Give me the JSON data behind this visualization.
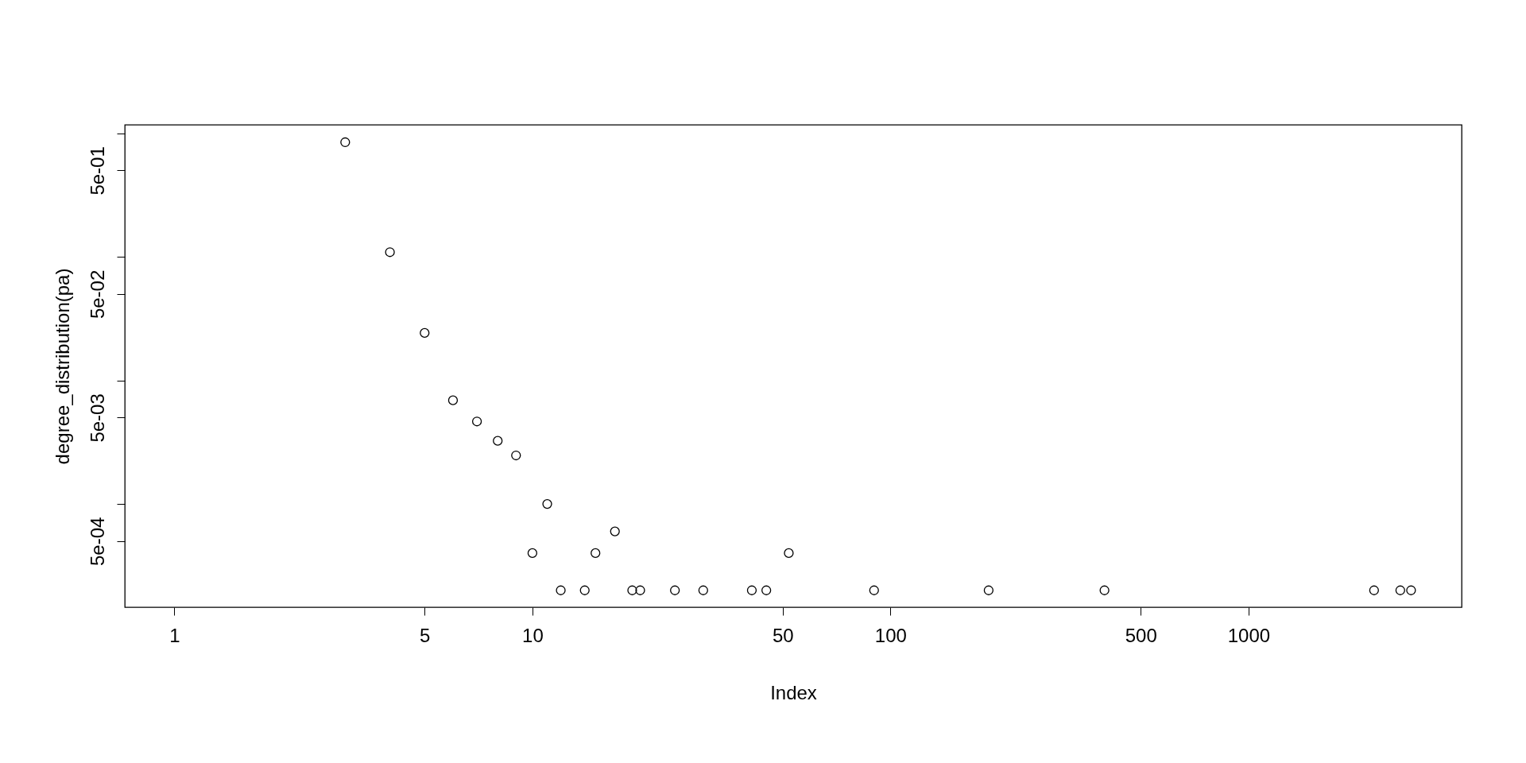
{
  "chart_data": {
    "type": "scatter",
    "xlabel": "Index",
    "ylabel": "degree_distribution(pa)",
    "log": "xy",
    "grid": false,
    "marker": "circle",
    "legend": false,
    "x": [
      3,
      4,
      5,
      6,
      7,
      8,
      9,
      10,
      11,
      12,
      14,
      15,
      17,
      19,
      20,
      25,
      30,
      41,
      45,
      52,
      90,
      188,
      396,
      2242,
      2654,
      2844
    ],
    "series": [
      {
        "color": "#000000",
        "values": [
          0.845,
          0.109,
          0.0242,
          0.0069,
          0.00465,
          0.00324,
          0.00247,
          0.0004,
          0.001,
          0.0002,
          0.0002,
          0.0004,
          0.0006,
          0.0002,
          0.0002,
          0.0002,
          0.0002,
          0.0002,
          0.0002,
          0.0004,
          0.0002,
          0.0002,
          0.0002,
          0.0002,
          0.0002,
          0.0002
        ]
      }
    ],
    "xlim": [
      0.727,
      3937
    ],
    "ylim": [
      0.000146,
      1.17
    ],
    "xticks": [
      1,
      5,
      10,
      50,
      100,
      500,
      1000
    ],
    "yticks": [
      {
        "value": 1,
        "label": null
      },
      {
        "value": 0.5,
        "label": "5e-01"
      },
      {
        "value": 0.1,
        "label": null
      },
      {
        "value": 0.05,
        "label": "5e-02"
      },
      {
        "value": 0.01,
        "label": null
      },
      {
        "value": 0.005,
        "label": "5e-03"
      },
      {
        "value": 0.001,
        "label": null
      },
      {
        "value": 0.0005,
        "label": "5e-04"
      }
    ]
  }
}
